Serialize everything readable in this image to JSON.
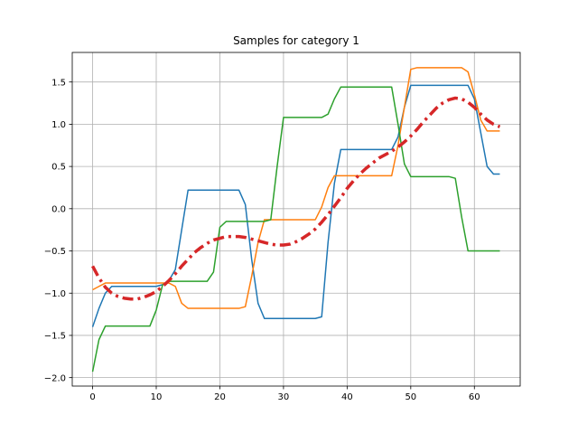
{
  "chart_data": {
    "type": "line",
    "title": "Samples for category 1",
    "xlabel": "",
    "ylabel": "",
    "xlim": [
      -3.2,
      67.2
    ],
    "ylim": [
      -2.1,
      1.85
    ],
    "xticks": [
      0,
      10,
      20,
      30,
      40,
      50,
      60
    ],
    "yticks": [
      -2.0,
      -1.5,
      -1.0,
      -0.5,
      0.0,
      0.5,
      1.0,
      1.5
    ],
    "ytick_labels": [
      "−2.0",
      "−1.5",
      "−1.0",
      "−0.5",
      "0.0",
      "0.5",
      "1.0",
      "1.5"
    ],
    "grid": true,
    "legend": "none",
    "series": [
      {
        "color": "#1f77b4",
        "style": "solid",
        "points": [
          [
            0,
            -1.4
          ],
          [
            1,
            -1.18
          ],
          [
            2,
            -1.0
          ],
          [
            3,
            -0.92
          ],
          [
            9,
            -0.92
          ],
          [
            10,
            -0.92
          ],
          [
            11,
            -0.9
          ],
          [
            12,
            -0.85
          ],
          [
            13,
            -0.72
          ],
          [
            14,
            -0.25
          ],
          [
            15,
            0.22
          ],
          [
            23,
            0.22
          ],
          [
            24,
            0.05
          ],
          [
            25,
            -0.6
          ],
          [
            26,
            -1.12
          ],
          [
            27,
            -1.3
          ],
          [
            35,
            -1.3
          ],
          [
            36,
            -1.28
          ],
          [
            37,
            -0.4
          ],
          [
            38,
            0.3
          ],
          [
            39,
            0.7
          ],
          [
            47,
            0.7
          ],
          [
            48,
            0.85
          ],
          [
            49,
            1.2
          ],
          [
            50,
            1.46
          ],
          [
            58,
            1.46
          ],
          [
            59,
            1.46
          ],
          [
            60,
            1.3
          ],
          [
            61,
            0.9
          ],
          [
            62,
            0.5
          ],
          [
            63,
            0.41
          ],
          [
            64,
            0.41
          ]
        ]
      },
      {
        "color": "#ff7f0e",
        "style": "solid",
        "points": [
          [
            0,
            -0.96
          ],
          [
            1,
            -0.92
          ],
          [
            2,
            -0.88
          ],
          [
            12,
            -0.88
          ],
          [
            13,
            -0.92
          ],
          [
            14,
            -1.12
          ],
          [
            15,
            -1.18
          ],
          [
            22,
            -1.18
          ],
          [
            23,
            -1.18
          ],
          [
            24,
            -1.16
          ],
          [
            25,
            -0.8
          ],
          [
            26,
            -0.4
          ],
          [
            27,
            -0.13
          ],
          [
            35,
            -0.13
          ],
          [
            36,
            0.02
          ],
          [
            37,
            0.25
          ],
          [
            38,
            0.39
          ],
          [
            47,
            0.39
          ],
          [
            48,
            0.75
          ],
          [
            49,
            1.2
          ],
          [
            50,
            1.65
          ],
          [
            51,
            1.67
          ],
          [
            58,
            1.67
          ],
          [
            59,
            1.62
          ],
          [
            60,
            1.35
          ],
          [
            61,
            1.05
          ],
          [
            62,
            0.92
          ],
          [
            64,
            0.92
          ]
        ]
      },
      {
        "color": "#2ca02c",
        "style": "solid",
        "points": [
          [
            0,
            -1.93
          ],
          [
            1,
            -1.55
          ],
          [
            2,
            -1.39
          ],
          [
            9,
            -1.39
          ],
          [
            10,
            -1.2
          ],
          [
            11,
            -0.9
          ],
          [
            12,
            -0.86
          ],
          [
            18,
            -0.86
          ],
          [
            19,
            -0.75
          ],
          [
            20,
            -0.22
          ],
          [
            21,
            -0.15
          ],
          [
            27,
            -0.15
          ],
          [
            28,
            -0.13
          ],
          [
            29,
            0.5
          ],
          [
            30,
            1.08
          ],
          [
            36,
            1.08
          ],
          [
            37,
            1.12
          ],
          [
            38,
            1.3
          ],
          [
            39,
            1.44
          ],
          [
            47,
            1.44
          ],
          [
            48,
            1.0
          ],
          [
            49,
            0.53
          ],
          [
            50,
            0.38
          ],
          [
            56,
            0.38
          ],
          [
            57,
            0.36
          ],
          [
            58,
            -0.1
          ],
          [
            59,
            -0.5
          ],
          [
            64,
            -0.5
          ]
        ]
      },
      {
        "color": "#d62728",
        "style": "dashdot",
        "points": [
          [
            0,
            -0.68
          ],
          [
            1,
            -0.82
          ],
          [
            2,
            -0.93
          ],
          [
            3,
            -1.0
          ],
          [
            4,
            -1.04
          ],
          [
            5,
            -1.06
          ],
          [
            6,
            -1.07
          ],
          [
            7,
            -1.07
          ],
          [
            8,
            -1.05
          ],
          [
            9,
            -1.02
          ],
          [
            10,
            -0.98
          ],
          [
            11,
            -0.92
          ],
          [
            12,
            -0.85
          ],
          [
            13,
            -0.77
          ],
          [
            14,
            -0.68
          ],
          [
            15,
            -0.6
          ],
          [
            16,
            -0.52
          ],
          [
            17,
            -0.46
          ],
          [
            18,
            -0.41
          ],
          [
            19,
            -0.37
          ],
          [
            20,
            -0.35
          ],
          [
            21,
            -0.33
          ],
          [
            22,
            -0.33
          ],
          [
            23,
            -0.33
          ],
          [
            24,
            -0.34
          ],
          [
            25,
            -0.36
          ],
          [
            26,
            -0.38
          ],
          [
            27,
            -0.4
          ],
          [
            28,
            -0.42
          ],
          [
            29,
            -0.43
          ],
          [
            30,
            -0.43
          ],
          [
            31,
            -0.42
          ],
          [
            32,
            -0.39
          ],
          [
            33,
            -0.35
          ],
          [
            34,
            -0.3
          ],
          [
            35,
            -0.24
          ],
          [
            36,
            -0.16
          ],
          [
            37,
            -0.07
          ],
          [
            38,
            0.03
          ],
          [
            39,
            0.13
          ],
          [
            40,
            0.24
          ],
          [
            41,
            0.33
          ],
          [
            42,
            0.41
          ],
          [
            43,
            0.48
          ],
          [
            44,
            0.54
          ],
          [
            45,
            0.6
          ],
          [
            46,
            0.64
          ],
          [
            47,
            0.68
          ],
          [
            48,
            0.73
          ],
          [
            49,
            0.79
          ],
          [
            50,
            0.86
          ],
          [
            51,
            0.94
          ],
          [
            52,
            1.03
          ],
          [
            53,
            1.11
          ],
          [
            54,
            1.19
          ],
          [
            55,
            1.25
          ],
          [
            56,
            1.29
          ],
          [
            57,
            1.31
          ],
          [
            58,
            1.3
          ],
          [
            59,
            1.26
          ],
          [
            60,
            1.2
          ],
          [
            61,
            1.12
          ],
          [
            62,
            1.05
          ],
          [
            63,
            1.0
          ],
          [
            64,
            0.97
          ]
        ]
      }
    ]
  }
}
